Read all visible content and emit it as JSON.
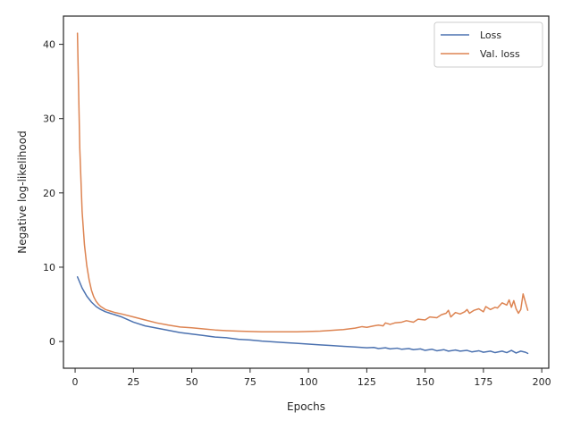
{
  "chart_data": {
    "type": "line",
    "title": "",
    "xlabel": "Epochs",
    "ylabel": "Negative log-likelihood",
    "xlim": [
      -5,
      203
    ],
    "ylim": [
      -3.6,
      43.8
    ],
    "xticks": [
      0,
      25,
      50,
      75,
      100,
      125,
      150,
      175,
      200
    ],
    "yticks": [
      0,
      10,
      20,
      30,
      40
    ],
    "xtick_labels": [
      "0",
      "25",
      "50",
      "75",
      "100",
      "125",
      "150",
      "175",
      "200"
    ],
    "ytick_labels": [
      "0",
      "10",
      "20",
      "30",
      "40"
    ],
    "grid": false,
    "legend_position": "top-right",
    "series": [
      {
        "name": "Loss",
        "color": "#4c72b0",
        "x": [
          1,
          3,
          5,
          7,
          9,
          11,
          13,
          15,
          17,
          20,
          25,
          30,
          35,
          40,
          45,
          50,
          55,
          60,
          65,
          70,
          75,
          80,
          85,
          90,
          95,
          100,
          105,
          110,
          115,
          120,
          125,
          128,
          130,
          133,
          135,
          138,
          140,
          143,
          145,
          148,
          150,
          153,
          155,
          158,
          160,
          163,
          165,
          168,
          170,
          173,
          175,
          178,
          180,
          183,
          185,
          187,
          189,
          191,
          193,
          194
        ],
        "y": [
          8.7,
          7.2,
          6.1,
          5.3,
          4.7,
          4.3,
          4.0,
          3.8,
          3.6,
          3.3,
          2.6,
          2.1,
          1.8,
          1.5,
          1.2,
          1.0,
          0.8,
          0.6,
          0.5,
          0.3,
          0.2,
          0.05,
          -0.05,
          -0.15,
          -0.25,
          -0.35,
          -0.45,
          -0.55,
          -0.65,
          -0.75,
          -0.85,
          -0.8,
          -0.95,
          -0.85,
          -1.0,
          -0.9,
          -1.05,
          -0.95,
          -1.1,
          -1.0,
          -1.2,
          -1.05,
          -1.25,
          -1.1,
          -1.3,
          -1.15,
          -1.3,
          -1.2,
          -1.4,
          -1.25,
          -1.45,
          -1.3,
          -1.5,
          -1.3,
          -1.5,
          -1.2,
          -1.55,
          -1.3,
          -1.45,
          -1.6
        ]
      },
      {
        "name": "Val. loss",
        "color": "#dd8452",
        "x": [
          1,
          2,
          3,
          4,
          5,
          6,
          7,
          8,
          9,
          10,
          11,
          12,
          13,
          14,
          15,
          17,
          20,
          25,
          30,
          35,
          40,
          45,
          50,
          55,
          60,
          65,
          70,
          75,
          80,
          85,
          90,
          95,
          100,
          105,
          110,
          115,
          120,
          123,
          125,
          128,
          130,
          132,
          133,
          135,
          137,
          140,
          142,
          145,
          147,
          150,
          152,
          155,
          157,
          159,
          160,
          161,
          163,
          165,
          167,
          168,
          169,
          171,
          173,
          175,
          176,
          178,
          180,
          181,
          183,
          185,
          186,
          187,
          188,
          189,
          190,
          191,
          192,
          193,
          194
        ],
        "y": [
          41.5,
          26.0,
          17.5,
          13.0,
          10.2,
          8.3,
          6.9,
          6.0,
          5.4,
          5.0,
          4.7,
          4.5,
          4.3,
          4.2,
          4.1,
          3.9,
          3.7,
          3.3,
          2.9,
          2.5,
          2.2,
          1.95,
          1.85,
          1.7,
          1.55,
          1.45,
          1.4,
          1.35,
          1.3,
          1.3,
          1.3,
          1.3,
          1.35,
          1.4,
          1.5,
          1.6,
          1.8,
          2.0,
          1.9,
          2.1,
          2.2,
          2.1,
          2.5,
          2.3,
          2.5,
          2.6,
          2.8,
          2.6,
          3.0,
          2.9,
          3.3,
          3.2,
          3.6,
          3.8,
          4.2,
          3.3,
          3.9,
          3.7,
          4.0,
          4.3,
          3.8,
          4.2,
          4.4,
          4.0,
          4.7,
          4.3,
          4.6,
          4.5,
          5.2,
          4.9,
          5.6,
          4.6,
          5.5,
          4.4,
          3.8,
          4.3,
          6.4,
          5.3,
          4.2
        ]
      }
    ]
  }
}
